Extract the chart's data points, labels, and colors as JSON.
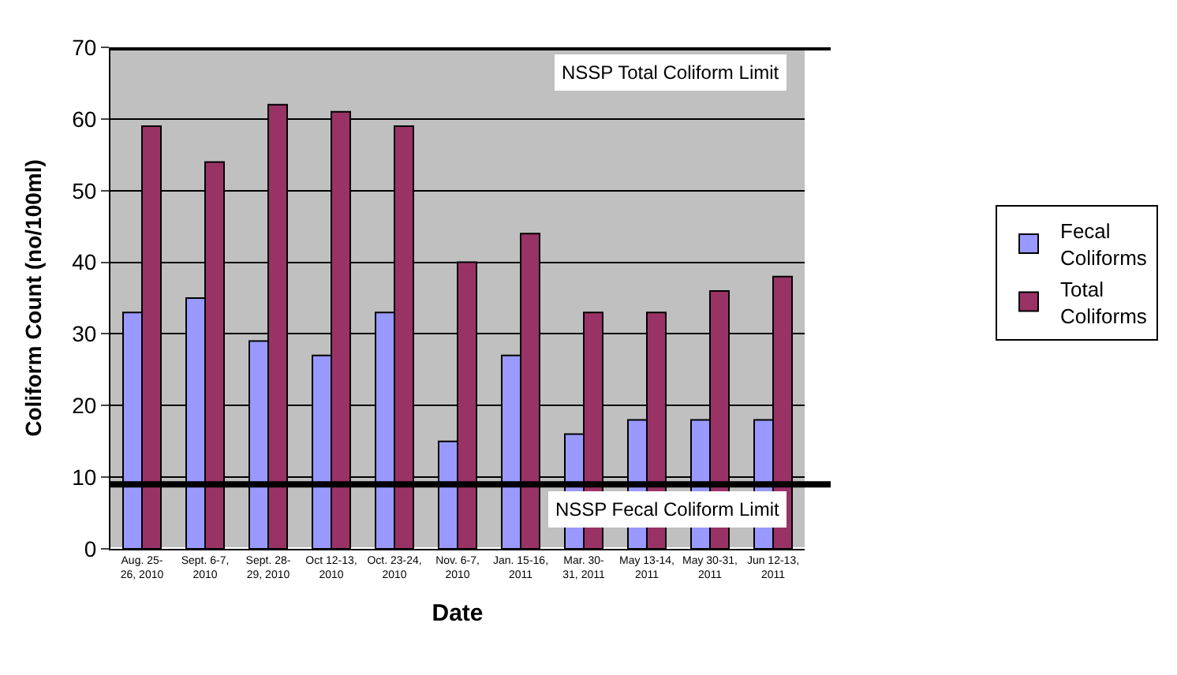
{
  "chart_data": {
    "type": "bar",
    "xlabel": "Date",
    "ylabel": "Coliform Count (no/100ml)",
    "categories": [
      "Aug. 25-\n26, 2010",
      "Sept. 6-7,\n2010",
      "Sept. 28-\n29, 2010",
      "Oct 12-13,\n2010",
      "Oct. 23-24,\n2010",
      "Nov. 6-7,\n2010",
      "Jan. 15-16,\n2011",
      "Mar. 30-\n31, 2011",
      "May 13-14,\n2011",
      "May 30-31,\n2011",
      "Jun 12-13,\n2011"
    ],
    "series": [
      {
        "name": "Fecal Coliforms",
        "color": "#9999ff",
        "values": [
          33,
          35,
          29,
          27,
          33,
          15,
          27,
          16,
          18,
          18,
          18
        ]
      },
      {
        "name": "Total Coliforms",
        "color": "#993366",
        "values": [
          59,
          54,
          62,
          61,
          59,
          40,
          44,
          33,
          33,
          36,
          38
        ]
      }
    ],
    "ylim": [
      0,
      70
    ],
    "yticks": [
      0,
      10,
      20,
      30,
      40,
      50,
      60,
      70
    ],
    "ref_lines": [
      {
        "axis": "y",
        "value": 70,
        "label": "NSSP Total Coliform Limit",
        "color": "#000000"
      },
      {
        "axis": "y",
        "value": 9,
        "label": "NSSP Fecal Coliform Limit",
        "color": "#000000"
      }
    ],
    "grid": "y",
    "legend": "right"
  }
}
